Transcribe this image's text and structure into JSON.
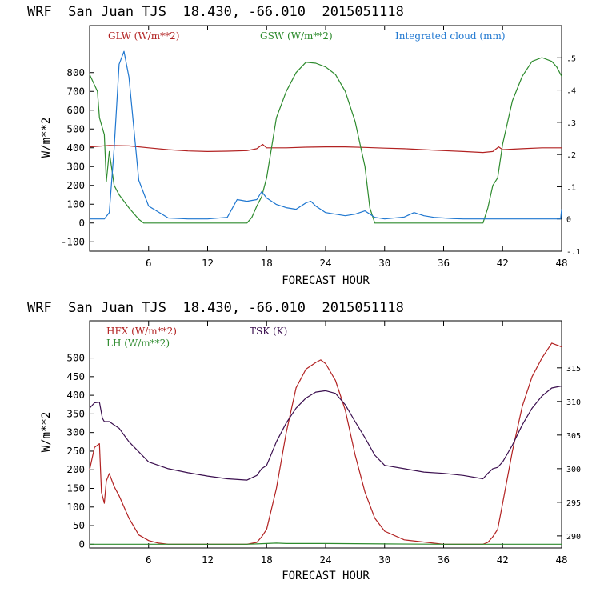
{
  "chart_data": [
    {
      "type": "line",
      "title": "WRF  San Juan TJS  18.430, -66.010  2015051118",
      "xlabel": "FORECAST HOUR",
      "ylabel": "W/m**2",
      "xlim": [
        0,
        48
      ],
      "ylim": [
        -150,
        1050
      ],
      "y2lim": [
        -0.1,
        0.6
      ],
      "xticks": [
        6,
        12,
        18,
        24,
        30,
        36,
        42,
        48
      ],
      "yticks": [
        -100,
        0,
        100,
        200,
        300,
        400,
        500,
        600,
        700,
        800
      ],
      "y2ticks": [
        -0.1,
        0,
        0.1,
        0.2,
        0.3,
        0.4,
        0.5
      ],
      "y2ticklabels": [
        "-.1",
        "0",
        ".1",
        ".2",
        ".3",
        ".4",
        ".5"
      ],
      "grid": false,
      "legend_placement": "top",
      "series": [
        {
          "name": "GLW (W/m**2)",
          "color": "#b22222",
          "axis": "left",
          "x": [
            0,
            2,
            4,
            6,
            8,
            10,
            12,
            14,
            16,
            17,
            17.6,
            18,
            20,
            22,
            24,
            26,
            28,
            30,
            32,
            34,
            36,
            38,
            40,
            41,
            41.6,
            42,
            44,
            46,
            48
          ],
          "values": [
            405,
            412,
            410,
            400,
            390,
            383,
            380,
            382,
            385,
            395,
            418,
            400,
            400,
            403,
            405,
            405,
            402,
            398,
            395,
            390,
            385,
            380,
            375,
            380,
            405,
            390,
            395,
            400,
            400
          ]
        },
        {
          "name": "GSW (W/m**2)",
          "color": "#2e8b2e",
          "axis": "left",
          "x": [
            0,
            0.8,
            1,
            1.5,
            1.7,
            2,
            2.5,
            3,
            4,
            5,
            5.5,
            6,
            16,
            16.5,
            17,
            17.5,
            18,
            18.5,
            19,
            20,
            21,
            22,
            23,
            24,
            25,
            26,
            27,
            28,
            28.5,
            29,
            40,
            40.5,
            41,
            41.5,
            42,
            43,
            44,
            45,
            46,
            47,
            47.5,
            48
          ],
          "values": [
            790,
            700,
            560,
            470,
            220,
            380,
            200,
            150,
            80,
            20,
            0,
            0,
            0,
            30,
            90,
            140,
            240,
            400,
            560,
            700,
            800,
            855,
            850,
            830,
            790,
            700,
            540,
            300,
            80,
            0,
            0,
            80,
            200,
            240,
            420,
            650,
            780,
            860,
            880,
            860,
            830,
            780
          ]
        },
        {
          "name": "Integrated cloud (mm)",
          "color": "#1f77d0",
          "axis": "right",
          "x": [
            0,
            1,
            1.5,
            2,
            2.5,
            3,
            3.5,
            4,
            5,
            6,
            8,
            10,
            12,
            14,
            15,
            16,
            17,
            17.5,
            18,
            19,
            20,
            21,
            22,
            22.5,
            23,
            24,
            25,
            26,
            27,
            28,
            29,
            30,
            32,
            33,
            34,
            35,
            36,
            37,
            38,
            40,
            42,
            44,
            46,
            47.9,
            48
          ],
          "values": [
            0,
            0,
            0,
            0.02,
            0.22,
            0.48,
            0.52,
            0.44,
            0.12,
            0.04,
            0.003,
            0,
            0,
            0.005,
            0.06,
            0.055,
            0.06,
            0.085,
            0.065,
            0.045,
            0.035,
            0.03,
            0.05,
            0.055,
            0.04,
            0.02,
            0.015,
            0.01,
            0.015,
            0.025,
            0.005,
            0,
            0.006,
            0.02,
            0.01,
            0.005,
            0.003,
            0.001,
            0,
            0,
            0,
            0,
            0,
            0,
            0.03
          ]
        }
      ]
    },
    {
      "type": "line",
      "title": "WRF  San Juan TJS  18.430, -66.010  2015051118",
      "xlabel": "FORECAST HOUR",
      "ylabel": "W/m**2",
      "xlim": [
        0,
        48
      ],
      "ylim": [
        -10,
        600
      ],
      "y2lim": [
        288.2,
        322
      ],
      "xticks": [
        6,
        12,
        18,
        24,
        30,
        36,
        42,
        48
      ],
      "yticks": [
        0,
        50,
        100,
        150,
        200,
        250,
        300,
        350,
        400,
        450,
        500
      ],
      "y2ticks": [
        290,
        295,
        300,
        305,
        310,
        315
      ],
      "grid": false,
      "legend_placement": "top-left",
      "series": [
        {
          "name": "HFX (W/m**2)",
          "color": "#b22222",
          "axis": "left",
          "x": [
            0,
            0.5,
            1,
            1.2,
            1.5,
            1.7,
            2,
            2.5,
            3,
            4,
            5,
            6,
            7,
            8,
            12,
            16,
            17,
            17.5,
            18,
            19,
            20,
            21,
            22,
            23,
            23.5,
            24,
            25,
            26,
            27,
            28,
            29,
            30,
            32,
            36,
            40,
            40.5,
            41,
            41.5,
            42,
            43,
            44,
            45,
            46,
            47,
            48
          ],
          "values": [
            200,
            260,
            270,
            140,
            110,
            170,
            190,
            155,
            130,
            70,
            25,
            10,
            3,
            0,
            0,
            0,
            5,
            20,
            40,
            150,
            300,
            420,
            470,
            488,
            495,
            485,
            440,
            360,
            240,
            140,
            70,
            35,
            12,
            0,
            0,
            5,
            20,
            40,
            110,
            250,
            370,
            450,
            500,
            540,
            530
          ]
        },
        {
          "name": "LH (W/m**2)",
          "color": "#2e8b2e",
          "axis": "left",
          "x": [
            0,
            6,
            16,
            17,
            18,
            19,
            20,
            24,
            30,
            36,
            42,
            48
          ],
          "values": [
            0,
            0,
            0,
            1,
            2,
            3,
            2,
            2,
            1,
            0,
            0,
            0
          ]
        },
        {
          "name": "TSK (K)",
          "color": "#3b0f4f",
          "axis": "right",
          "x": [
            0,
            0.5,
            1,
            1.3,
            1.5,
            2,
            2.5,
            3,
            4,
            5,
            6,
            8,
            10,
            12,
            14,
            16,
            17,
            17.5,
            18,
            19,
            20,
            21,
            22,
            23,
            24,
            25,
            26,
            27,
            28,
            29,
            30,
            32,
            34,
            36,
            38,
            40,
            40.5,
            41,
            41.5,
            42,
            43,
            44,
            45,
            46,
            47,
            48
          ],
          "values": [
            309,
            309.8,
            309.9,
            307.5,
            307,
            307,
            306.5,
            306,
            304,
            302.5,
            301,
            300,
            299.4,
            298.9,
            298.5,
            298.3,
            299,
            300,
            300.5,
            304,
            306.8,
            309,
            310.5,
            311.4,
            311.6,
            311.2,
            309.5,
            307,
            304.6,
            302,
            300.5,
            300,
            299.5,
            299.3,
            299,
            298.5,
            299.3,
            300,
            300.2,
            301,
            303.5,
            306.5,
            309,
            310.8,
            312,
            312.3
          ]
        }
      ]
    }
  ]
}
